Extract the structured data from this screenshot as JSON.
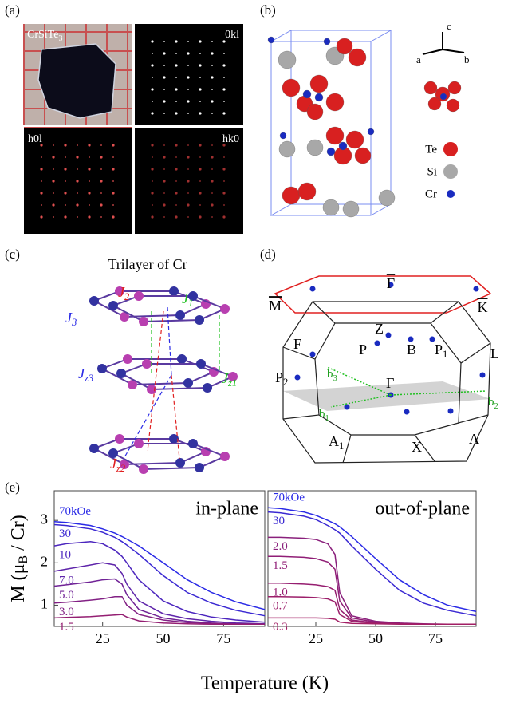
{
  "panels": {
    "a": {
      "label": "(a)",
      "sample": {
        "main": "CrSiTe",
        "sub": "3"
      },
      "images": [
        "0kl",
        "h0l",
        "hk0"
      ]
    },
    "b": {
      "label": "(b)",
      "axes": [
        "c",
        "a",
        "b"
      ],
      "legend": [
        "Te",
        "Si",
        "Cr"
      ]
    },
    "c": {
      "label": "(c)",
      "title": "Trilayer of Cr",
      "couplings": [
        {
          "main": "J",
          "sub": "2"
        },
        {
          "main": "J",
          "sub": "1"
        },
        {
          "main": "J",
          "sub": "3"
        },
        {
          "main": "J",
          "sub": "z3"
        },
        {
          "main": "J",
          "sub": "z1"
        },
        {
          "main": "J",
          "sub": "z2"
        }
      ]
    },
    "d": {
      "label": "(d)",
      "surface_points": [
        "M",
        "Γ",
        "K"
      ],
      "points": [
        {
          "main": "Z"
        },
        {
          "main": "F"
        },
        {
          "main": "P"
        },
        {
          "main": "B"
        },
        {
          "main": "P",
          "sub": "1"
        },
        {
          "main": "L"
        },
        {
          "main": "P",
          "sub": "2"
        },
        {
          "main": "b",
          "sub": "3"
        },
        {
          "main": "b",
          "sub": "1"
        },
        {
          "main": "Γ"
        },
        {
          "main": "b",
          "sub": "2"
        },
        {
          "main": "A",
          "sub": "1"
        },
        {
          "main": "X"
        },
        {
          "main": "A"
        }
      ]
    }
  },
  "panel_e_label": "(e)",
  "chart_data": [
    {
      "type": "line",
      "annotation": "in-plane",
      "y_label": [
        "M (μ",
        "B",
        " / Cr)"
      ],
      "x_label": "Temperature (K)",
      "x": [
        5,
        10,
        20,
        25,
        30,
        33,
        35,
        40,
        50,
        60,
        70,
        80,
        92
      ],
      "xlim": [
        5,
        92
      ],
      "xticks": [
        25,
        50,
        75
      ],
      "ylim": [
        0.5,
        3.7
      ],
      "yticks": [
        1,
        2,
        3
      ],
      "series": [
        {
          "name": "70kOe",
          "color": "#2a2ae6",
          "values": [
            2.97,
            2.95,
            2.88,
            2.8,
            2.7,
            2.62,
            2.56,
            2.4,
            2.0,
            1.6,
            1.3,
            1.08,
            0.9
          ]
        },
        {
          "name": "30",
          "color": "#3a28d2",
          "values": [
            2.9,
            2.88,
            2.8,
            2.72,
            2.6,
            2.5,
            2.42,
            2.2,
            1.7,
            1.3,
            1.05,
            0.88,
            0.75
          ]
        },
        {
          "name": "10",
          "color": "#4c26be",
          "values": [
            2.4,
            2.45,
            2.5,
            2.45,
            2.3,
            2.15,
            2.0,
            1.6,
            1.1,
            0.85,
            0.72,
            0.65,
            0.6
          ]
        },
        {
          "name": "7.0",
          "color": "#5e24aa",
          "values": [
            1.8,
            1.85,
            1.95,
            2.0,
            1.95,
            1.75,
            1.5,
            1.1,
            0.8,
            0.68,
            0.62,
            0.58,
            0.56
          ]
        },
        {
          "name": "5.0",
          "color": "#702296",
          "values": [
            1.45,
            1.48,
            1.55,
            1.6,
            1.62,
            1.5,
            1.25,
            0.9,
            0.7,
            0.62,
            0.58,
            0.56,
            0.55
          ]
        },
        {
          "name": "3.0",
          "color": "#822084",
          "values": [
            1.05,
            1.07,
            1.12,
            1.15,
            1.2,
            1.2,
            1.0,
            0.78,
            0.65,
            0.59,
            0.57,
            0.55,
            0.55
          ]
        },
        {
          "name": "1.5",
          "color": "#941e72",
          "values": [
            0.7,
            0.71,
            0.73,
            0.75,
            0.77,
            0.78,
            0.72,
            0.63,
            0.58,
            0.56,
            0.55,
            0.55,
            0.55
          ]
        }
      ]
    },
    {
      "type": "line",
      "annotation": "out-of-plane",
      "x": [
        5,
        10,
        20,
        25,
        30,
        33,
        35,
        40,
        50,
        60,
        70,
        80,
        92
      ],
      "xlim": [
        5,
        92
      ],
      "xticks": [
        25,
        50,
        75
      ],
      "ylim": [
        0.5,
        3.7
      ],
      "series": [
        {
          "name": "70kOe",
          "color": "#2a2ae6",
          "values": [
            3.3,
            3.28,
            3.2,
            3.12,
            3.0,
            2.92,
            2.85,
            2.62,
            2.1,
            1.6,
            1.25,
            1.0,
            0.85
          ]
        },
        {
          "name": "30",
          "color": "#3a28d2",
          "values": [
            3.2,
            3.18,
            3.1,
            3.02,
            2.88,
            2.78,
            2.7,
            2.4,
            1.85,
            1.35,
            1.05,
            0.88,
            0.75
          ]
        },
        {
          "name": "2.0",
          "color": "#8a207c",
          "values": [
            2.6,
            2.6,
            2.58,
            2.55,
            2.45,
            2.2,
            1.3,
            0.75,
            0.62,
            0.58,
            0.56,
            0.55,
            0.55
          ]
        },
        {
          "name": "1.5",
          "color": "#901e76",
          "values": [
            2.15,
            2.15,
            2.13,
            2.1,
            2.02,
            1.85,
            1.1,
            0.7,
            0.6,
            0.57,
            0.55,
            0.55,
            0.55
          ]
        },
        {
          "name": "1.0",
          "color": "#961e70",
          "values": [
            1.52,
            1.52,
            1.5,
            1.48,
            1.44,
            1.35,
            0.9,
            0.65,
            0.58,
            0.56,
            0.55,
            0.55,
            0.55
          ]
        },
        {
          "name": "0.7",
          "color": "#9c1e6a",
          "values": [
            1.2,
            1.2,
            1.19,
            1.18,
            1.15,
            1.08,
            0.78,
            0.62,
            0.57,
            0.56,
            0.55,
            0.55,
            0.55
          ]
        },
        {
          "name": "0.3",
          "color": "#a21e64",
          "values": [
            0.7,
            0.7,
            0.7,
            0.7,
            0.69,
            0.67,
            0.6,
            0.57,
            0.56,
            0.55,
            0.55,
            0.55,
            0.55
          ]
        }
      ]
    }
  ]
}
